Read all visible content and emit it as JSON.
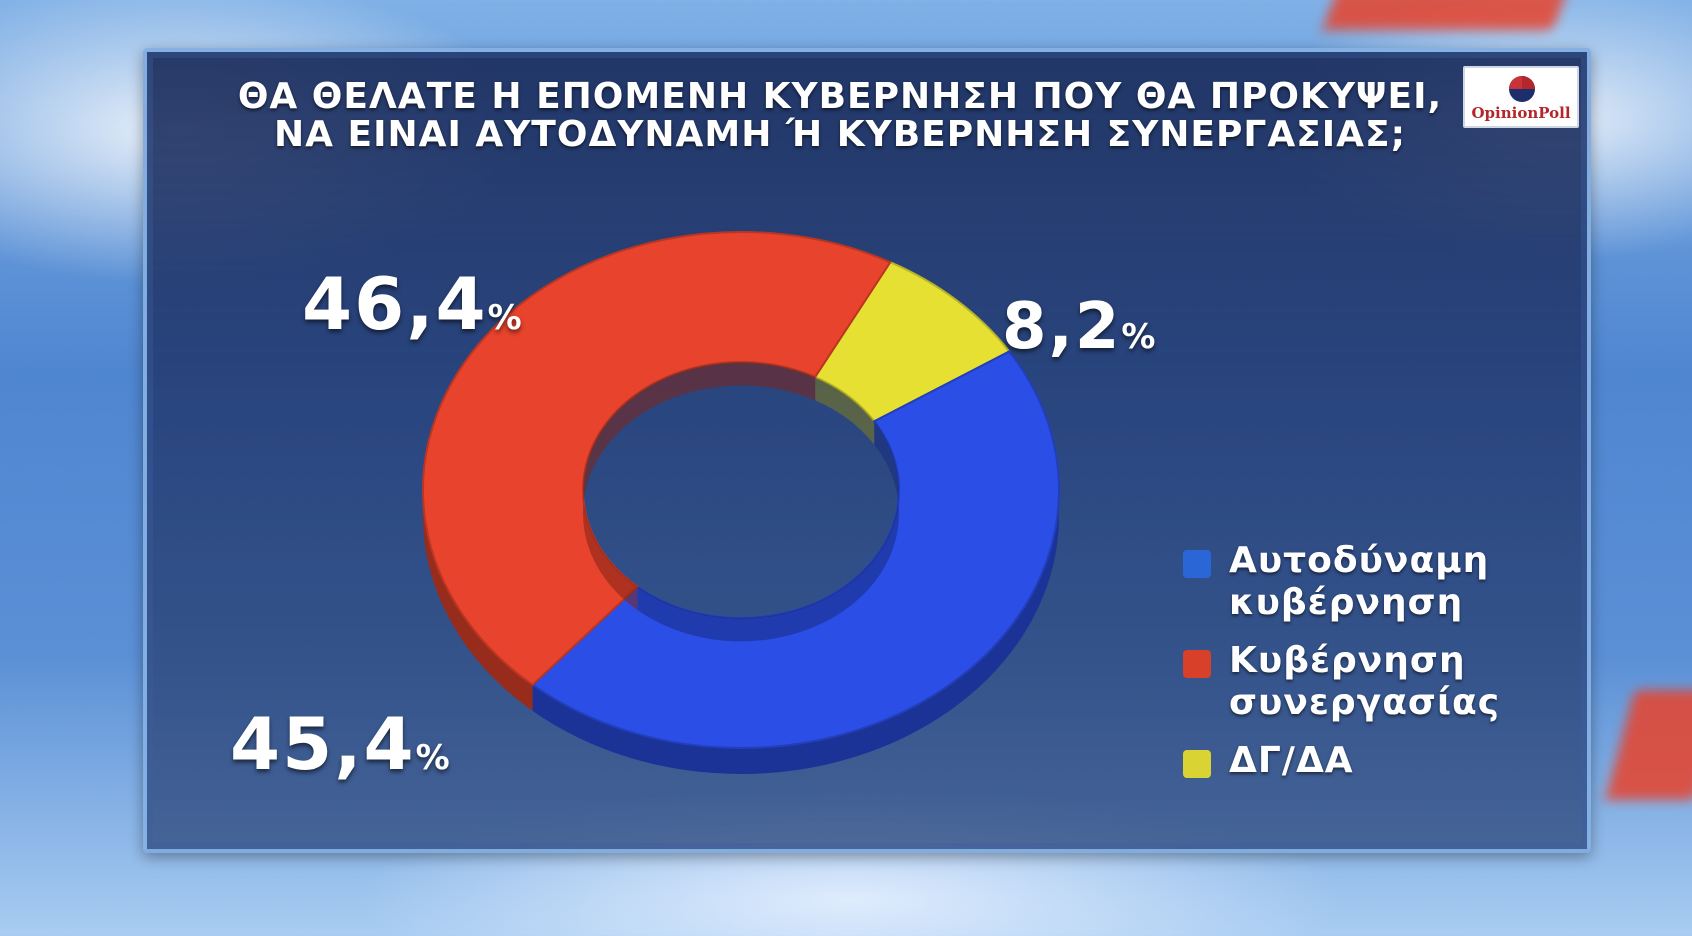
{
  "title_lines": [
    "ΘΑ ΘΕΛΑΤΕ Η ΕΠΟΜΕΝΗ ΚΥΒΕΡΝΗΣΗ ΠΟΥ ΘΑ ΠΡΟΚΥΨΕΙ,",
    "ΝΑ ΕΙΝΑΙ ΑΥΤΟΔΥΝΑΜΗ Ή ΚΥΒΕΡΝΗΣΗ ΣΥΝΕΡΓΑΣΙΑΣ;"
  ],
  "logo": {
    "text": "OpinionPoll"
  },
  "chart_data": {
    "type": "pie",
    "style": "donut",
    "title": "ΘΑ ΘΕΛΑΤΕ Η ΕΠΟΜΕΝΗ ΚΥΒΕΡΝΗΣΗ ΠΟΥ ΘΑ ΠΡΟΚΥΨΕΙ, ΝΑ ΕΙΝΑΙ ΑΥΤΟΔΥΝΑΜΗ Ή ΚΥΒΕΡΝΗΣΗ ΣΥΝΕΡΓΑΣΙΑΣ;",
    "unit": "%",
    "legend_position": "right",
    "slices": [
      {
        "label": "Αυτοδύναμη κυβέρνηση",
        "value": 45.4,
        "display": "45,4",
        "color": "#2a4ee6"
      },
      {
        "label": "Κυβέρνηση συνεργασίας",
        "value": 46.4,
        "display": "46,4",
        "color": "#e8432c"
      },
      {
        "label": "ΔΓ/ΔΑ",
        "value": 8.2,
        "display": "8,2",
        "color": "#e6e033"
      }
    ]
  },
  "legend": [
    {
      "label": "Αυτοδύναμη\nκυβέρνηση",
      "color": "#2a66d6"
    },
    {
      "label": "Κυβέρνηση\nσυνεργασίας",
      "color": "#d8402a"
    },
    {
      "label": "ΔΓ/ΔΑ",
      "color": "#d9d334"
    }
  ]
}
